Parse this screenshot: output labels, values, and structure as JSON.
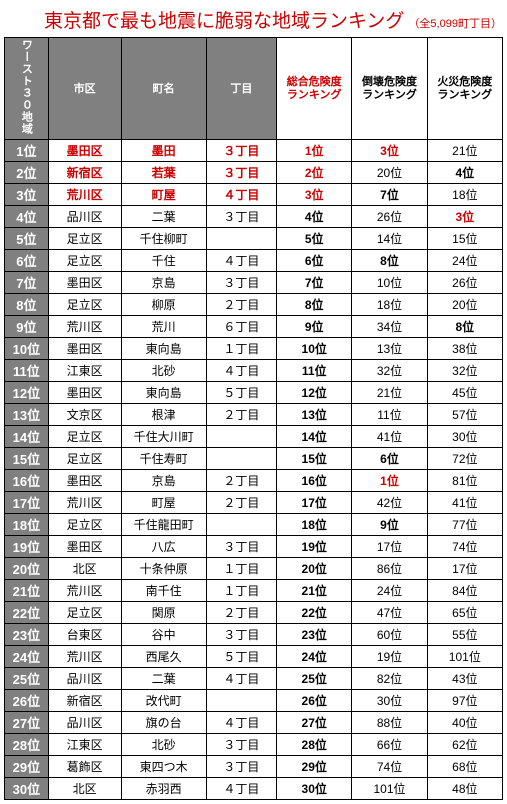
{
  "title": "東京都で最も地震に脆弱な地域ランキング",
  "subtitle": "（全5,099町丁目）",
  "header": {
    "corner": "ワースト３０地域",
    "cols": [
      "市区",
      "町名",
      "丁目",
      "総合危険度\nランキング",
      "倒壊危険度\nランキング",
      "火災危険度\nランキング"
    ]
  },
  "rows": [
    {
      "r": "1位",
      "w": "墨田区",
      "t": "墨田",
      "c": "３丁目",
      "o": "1位",
      "ko": "3位",
      "ka": "21位",
      "hl": {
        "w": 1,
        "t": 1,
        "c": 1,
        "o": 1,
        "ko": 1
      }
    },
    {
      "r": "2位",
      "w": "新宿区",
      "t": "若葉",
      "c": "３丁目",
      "o": "2位",
      "ko": "20位",
      "ka": "4位",
      "hl": {
        "w": 1,
        "t": 1,
        "c": 1,
        "o": 1,
        "ka": 2
      }
    },
    {
      "r": "3位",
      "w": "荒川区",
      "t": "町屋",
      "c": "４丁目",
      "o": "3位",
      "ko": "7位",
      "ka": "18位",
      "hl": {
        "w": 1,
        "t": 1,
        "c": 1,
        "o": 1,
        "ko": 2
      }
    },
    {
      "r": "4位",
      "w": "品川区",
      "t": "二葉",
      "c": "３丁目",
      "o": "4位",
      "ko": "26位",
      "ka": "3位",
      "hl": {
        "ka": 1
      }
    },
    {
      "r": "5位",
      "w": "足立区",
      "t": "千住柳町",
      "c": "",
      "o": "5位",
      "ko": "14位",
      "ka": "15位",
      "hl": {}
    },
    {
      "r": "6位",
      "w": "足立区",
      "t": "千住",
      "c": "４丁目",
      "o": "6位",
      "ko": "8位",
      "ka": "24位",
      "hl": {
        "ko": 2
      }
    },
    {
      "r": "7位",
      "w": "墨田区",
      "t": "京島",
      "c": "３丁目",
      "o": "7位",
      "ko": "10位",
      "ka": "26位",
      "hl": {}
    },
    {
      "r": "8位",
      "w": "足立区",
      "t": "柳原",
      "c": "２丁目",
      "o": "8位",
      "ko": "18位",
      "ka": "20位",
      "hl": {}
    },
    {
      "r": "9位",
      "w": "荒川区",
      "t": "荒川",
      "c": "６丁目",
      "o": "9位",
      "ko": "34位",
      "ka": "8位",
      "hl": {
        "ka": 2
      }
    },
    {
      "r": "10位",
      "w": "墨田区",
      "t": "東向島",
      "c": "１丁目",
      "o": "10位",
      "ko": "13位",
      "ka": "38位",
      "hl": {}
    },
    {
      "r": "11位",
      "w": "江東区",
      "t": "北砂",
      "c": "４丁目",
      "o": "11位",
      "ko": "32位",
      "ka": "32位",
      "hl": {}
    },
    {
      "r": "12位",
      "w": "墨田区",
      "t": "東向島",
      "c": "５丁目",
      "o": "12位",
      "ko": "21位",
      "ka": "45位",
      "hl": {}
    },
    {
      "r": "13位",
      "w": "文京区",
      "t": "根津",
      "c": "２丁目",
      "o": "13位",
      "ko": "11位",
      "ka": "57位",
      "hl": {}
    },
    {
      "r": "14位",
      "w": "足立区",
      "t": "千住大川町",
      "c": "",
      "o": "14位",
      "ko": "41位",
      "ka": "30位",
      "hl": {}
    },
    {
      "r": "15位",
      "w": "足立区",
      "t": "千住寿町",
      "c": "",
      "o": "15位",
      "ko": "6位",
      "ka": "72位",
      "hl": {
        "ko": 2
      }
    },
    {
      "r": "16位",
      "w": "墨田区",
      "t": "京島",
      "c": "２丁目",
      "o": "16位",
      "ko": "1位",
      "ka": "81位",
      "hl": {
        "ko": 1
      }
    },
    {
      "r": "17位",
      "w": "荒川区",
      "t": "町屋",
      "c": "２丁目",
      "o": "17位",
      "ko": "42位",
      "ka": "41位",
      "hl": {}
    },
    {
      "r": "18位",
      "w": "足立区",
      "t": "千住龍田町",
      "c": "",
      "o": "18位",
      "ko": "9位",
      "ka": "77位",
      "hl": {
        "ko": 2
      }
    },
    {
      "r": "19位",
      "w": "墨田区",
      "t": "八広",
      "c": "３丁目",
      "o": "19位",
      "ko": "17位",
      "ka": "74位",
      "hl": {}
    },
    {
      "r": "20位",
      "w": "北区",
      "t": "十条仲原",
      "c": "１丁目",
      "o": "20位",
      "ko": "86位",
      "ka": "17位",
      "hl": {}
    },
    {
      "r": "21位",
      "w": "荒川区",
      "t": "南千住",
      "c": "１丁目",
      "o": "21位",
      "ko": "24位",
      "ka": "84位",
      "hl": {}
    },
    {
      "r": "22位",
      "w": "足立区",
      "t": "関原",
      "c": "２丁目",
      "o": "22位",
      "ko": "47位",
      "ka": "65位",
      "hl": {}
    },
    {
      "r": "23位",
      "w": "台東区",
      "t": "谷中",
      "c": "３丁目",
      "o": "23位",
      "ko": "60位",
      "ka": "55位",
      "hl": {}
    },
    {
      "r": "24位",
      "w": "荒川区",
      "t": "西尾久",
      "c": "５丁目",
      "o": "24位",
      "ko": "19位",
      "ka": "101位",
      "hl": {}
    },
    {
      "r": "25位",
      "w": "品川区",
      "t": "二葉",
      "c": "４丁目",
      "o": "25位",
      "ko": "82位",
      "ka": "43位",
      "hl": {}
    },
    {
      "r": "26位",
      "w": "新宿区",
      "t": "改代町",
      "c": "",
      "o": "26位",
      "ko": "30位",
      "ka": "97位",
      "hl": {}
    },
    {
      "r": "27位",
      "w": "品川区",
      "t": "旗の台",
      "c": "４丁目",
      "o": "27位",
      "ko": "88位",
      "ka": "40位",
      "hl": {}
    },
    {
      "r": "28位",
      "w": "江東区",
      "t": "北砂",
      "c": "３丁目",
      "o": "28位",
      "ko": "66位",
      "ka": "62位",
      "hl": {}
    },
    {
      "r": "29位",
      "w": "葛飾区",
      "t": "東四つ木",
      "c": "３丁目",
      "o": "29位",
      "ko": "74位",
      "ka": "68位",
      "hl": {}
    },
    {
      "r": "30位",
      "w": "北区",
      "t": "赤羽西",
      "c": "４丁目",
      "o": "30位",
      "ko": "101位",
      "ka": "48位",
      "hl": {}
    }
  ]
}
